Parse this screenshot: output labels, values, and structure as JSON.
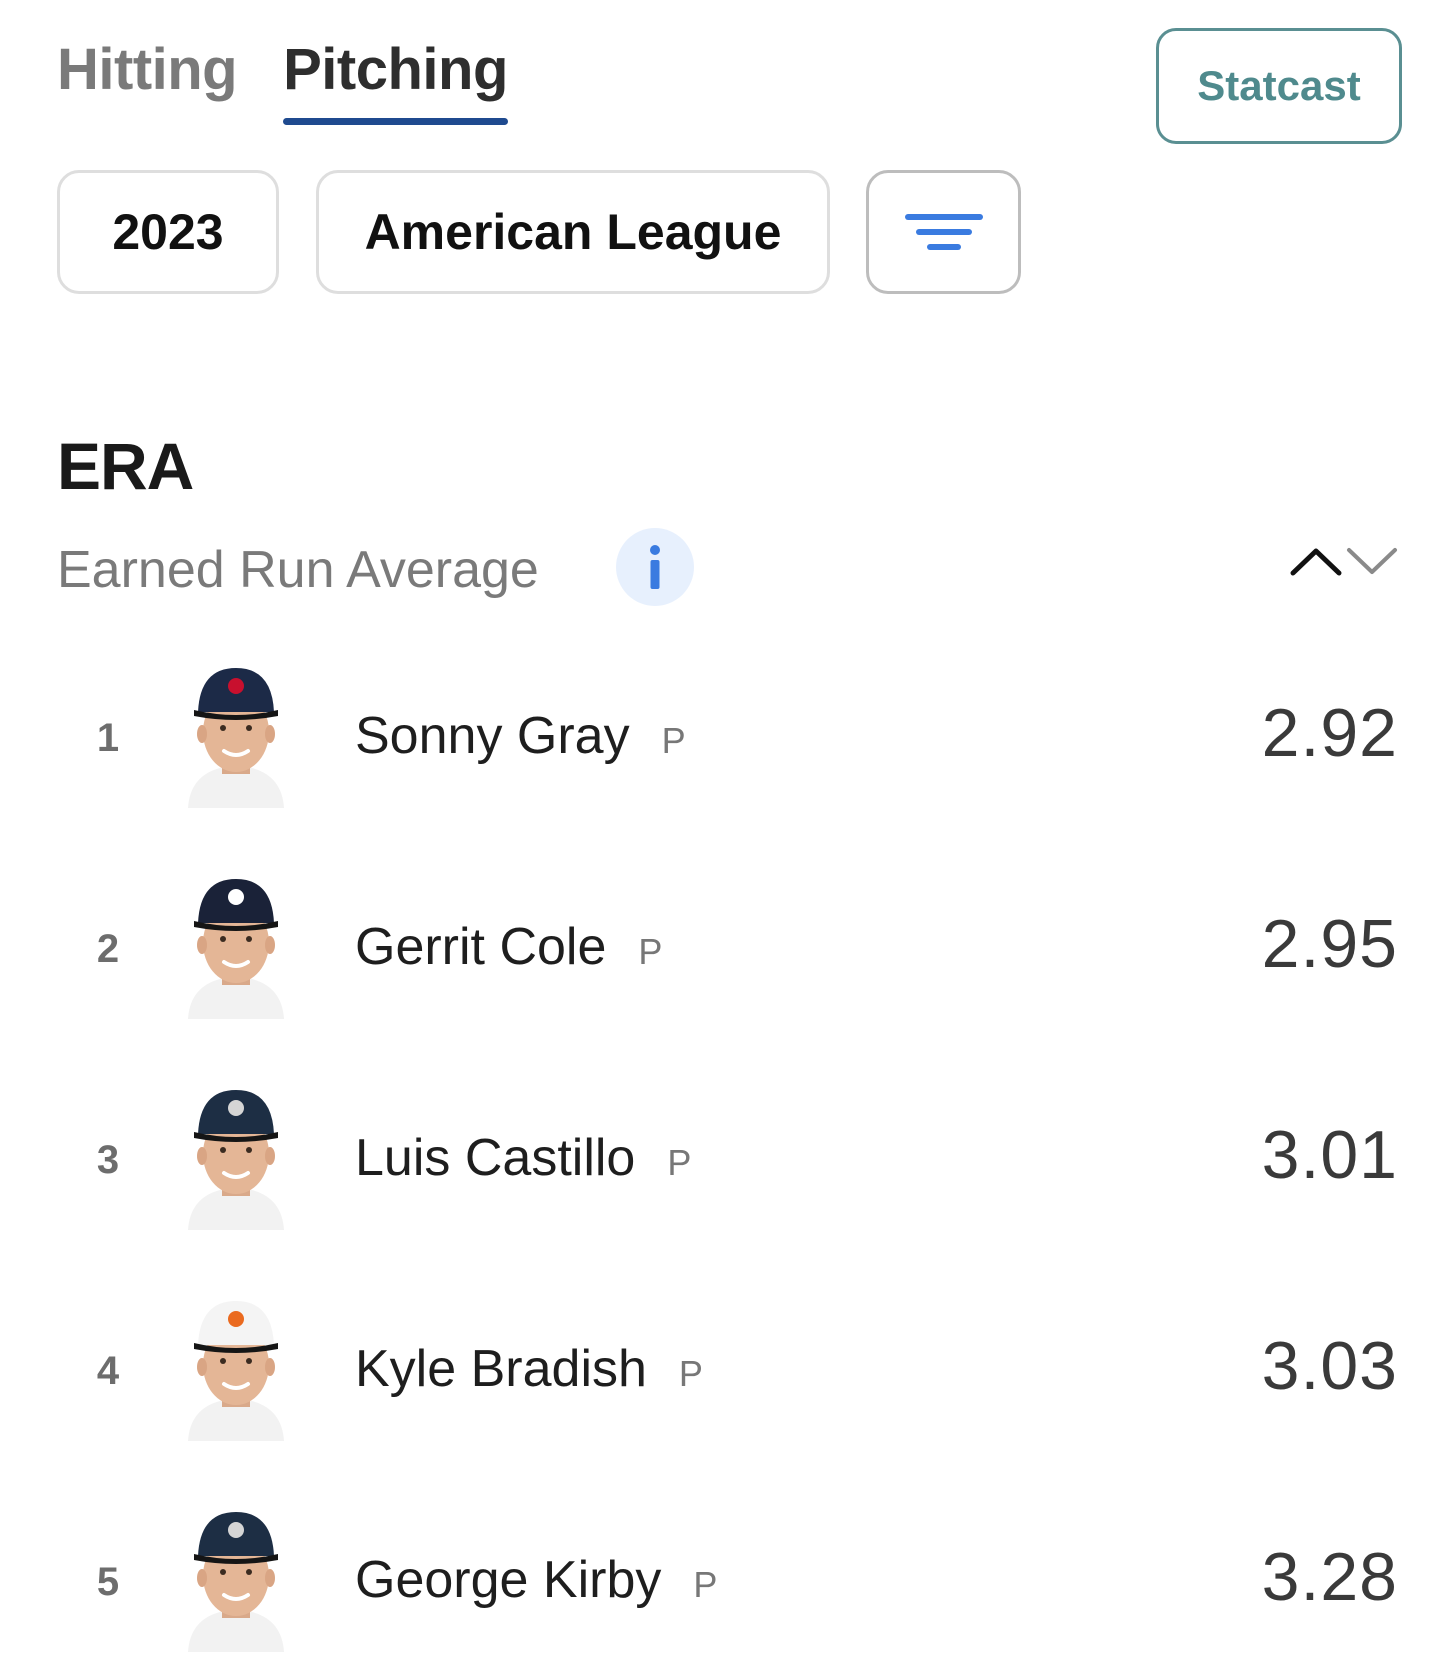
{
  "tabs": [
    {
      "label": "Hitting",
      "active": false
    },
    {
      "label": "Pitching",
      "active": true
    }
  ],
  "statcast_label": "Statcast",
  "filters": {
    "year": "2023",
    "league": "American League",
    "filter_icon": "filter-lines-icon"
  },
  "stat": {
    "abbr": "ERA",
    "name": "Earned Run Average",
    "info_icon": "info-icon",
    "sort_icons": [
      "chevron-up-icon",
      "chevron-down-icon"
    ]
  },
  "leaders": [
    {
      "rank": "1",
      "name": "Sonny Gray",
      "pos": "P",
      "value": "2.92",
      "cap_color": "#1c2a47",
      "logo_color": "#c8102e"
    },
    {
      "rank": "2",
      "name": "Gerrit Cole",
      "pos": "P",
      "value": "2.95",
      "cap_color": "#1a2238",
      "logo_color": "#ffffff"
    },
    {
      "rank": "3",
      "name": "Luis Castillo",
      "pos": "P",
      "value": "3.01",
      "cap_color": "#1d2e44",
      "logo_color": "#d5d5d5"
    },
    {
      "rank": "4",
      "name": "Kyle Bradish",
      "pos": "P",
      "value": "3.03",
      "cap_color": "#f4f4f4",
      "logo_color": "#ea6a1f"
    },
    {
      "rank": "5",
      "name": "George Kirby",
      "pos": "P",
      "value": "3.28",
      "cap_color": "#1d2e44",
      "logo_color": "#d5d5d5"
    }
  ]
}
